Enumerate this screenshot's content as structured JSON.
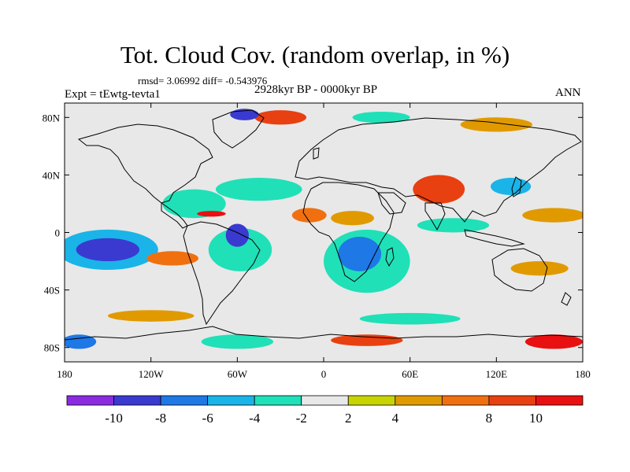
{
  "title": "Tot. Cloud Cov. (random overlap, in %)",
  "stats": "rmsd= 3.06992 diff= -0.543976",
  "experiment": "Expt = tEwtg-tevta1",
  "period": "2928kyr BP - 0000kyr BP",
  "season": "ANN",
  "map": {
    "lon_range": [
      -180,
      180
    ],
    "lat_range": [
      -90,
      90
    ],
    "background_color": "#e8e8e8",
    "lon_ticks": [
      {
        "value": -180,
        "label": "180"
      },
      {
        "value": -120,
        "label": "120W"
      },
      {
        "value": -60,
        "label": "60W"
      },
      {
        "value": 0,
        "label": "0"
      },
      {
        "value": 60,
        "label": "60E"
      },
      {
        "value": 120,
        "label": "120E"
      },
      {
        "value": 180,
        "label": "180"
      }
    ],
    "lat_ticks": [
      {
        "value": 80,
        "label": "80N"
      },
      {
        "value": 40,
        "label": "40N"
      },
      {
        "value": 0,
        "label": "0"
      },
      {
        "value": -40,
        "label": "40S"
      },
      {
        "value": -80,
        "label": "80S"
      }
    ],
    "anomalies": [
      {
        "lon": -150,
        "lat": -12,
        "rx": 22,
        "ry": 8,
        "level": -10
      },
      {
        "lon": -150,
        "lat": -12,
        "rx": 35,
        "ry": 14,
        "level": -6
      },
      {
        "lon": -105,
        "lat": -18,
        "rx": 18,
        "ry": 5,
        "level": 6
      },
      {
        "lon": -90,
        "lat": 20,
        "rx": 22,
        "ry": 10,
        "level": -4
      },
      {
        "lon": -78,
        "lat": 13,
        "rx": 10,
        "ry": 2,
        "level": 10
      },
      {
        "lon": -60,
        "lat": -2,
        "rx": 8,
        "ry": 8,
        "level": -10
      },
      {
        "lon": -58,
        "lat": -12,
        "rx": 22,
        "ry": 15,
        "level": -4
      },
      {
        "lon": -45,
        "lat": 30,
        "rx": 30,
        "ry": 8,
        "level": -4
      },
      {
        "lon": 25,
        "lat": -15,
        "rx": 15,
        "ry": 12,
        "level": -8
      },
      {
        "lon": 30,
        "lat": -20,
        "rx": 30,
        "ry": 22,
        "level": -4
      },
      {
        "lon": 80,
        "lat": 30,
        "rx": 18,
        "ry": 10,
        "level": 8
      },
      {
        "lon": 130,
        "lat": 32,
        "rx": 14,
        "ry": 6,
        "level": -6
      },
      {
        "lon": 160,
        "lat": 12,
        "rx": 22,
        "ry": 5,
        "level": 4
      },
      {
        "lon": 90,
        "lat": 5,
        "rx": 25,
        "ry": 5,
        "level": -4
      },
      {
        "lon": -55,
        "lat": 82,
        "rx": 10,
        "ry": 4,
        "level": -10
      },
      {
        "lon": -30,
        "lat": 80,
        "rx": 18,
        "ry": 5,
        "level": 8
      },
      {
        "lon": 40,
        "lat": 80,
        "rx": 20,
        "ry": 4,
        "level": -4
      },
      {
        "lon": 120,
        "lat": 75,
        "rx": 25,
        "ry": 5,
        "level": 4
      },
      {
        "lon": -120,
        "lat": -58,
        "rx": 30,
        "ry": 4,
        "level": 4
      },
      {
        "lon": 60,
        "lat": -60,
        "rx": 35,
        "ry": 4,
        "level": -4
      },
      {
        "lon": 160,
        "lat": -76,
        "rx": 20,
        "ry": 5,
        "level": 10
      },
      {
        "lon": -170,
        "lat": -76,
        "rx": 12,
        "ry": 5,
        "level": -8
      },
      {
        "lon": 30,
        "lat": -75,
        "rx": 25,
        "ry": 4,
        "level": 8
      },
      {
        "lon": -60,
        "lat": -76,
        "rx": 25,
        "ry": 5,
        "level": -4
      },
      {
        "lon": 20,
        "lat": 10,
        "rx": 15,
        "ry": 5,
        "level": 4
      },
      {
        "lon": -10,
        "lat": 12,
        "rx": 12,
        "ry": 5,
        "level": 6
      },
      {
        "lon": 150,
        "lat": -25,
        "rx": 20,
        "ry": 5,
        "level": 4
      }
    ]
  },
  "colorbar": {
    "bins": [
      {
        "level": -12,
        "color": "#8a2be2"
      },
      {
        "level": -10,
        "color": "#3a3ad0"
      },
      {
        "level": -8,
        "color": "#1e78e6"
      },
      {
        "level": -6,
        "color": "#1ab4e8"
      },
      {
        "level": -4,
        "color": "#20e0b8"
      },
      {
        "level": -2,
        "color": "#e8e8e8"
      },
      {
        "level": 2,
        "color": "#c8d400"
      },
      {
        "level": 4,
        "color": "#e09a00"
      },
      {
        "level": 6,
        "color": "#f07010"
      },
      {
        "level": 8,
        "color": "#e84010"
      },
      {
        "level": 10,
        "color": "#e81010"
      }
    ],
    "labels": [
      "-10",
      "-8",
      "-6",
      "-4",
      "-2",
      "2",
      "4",
      "8",
      "10"
    ]
  }
}
